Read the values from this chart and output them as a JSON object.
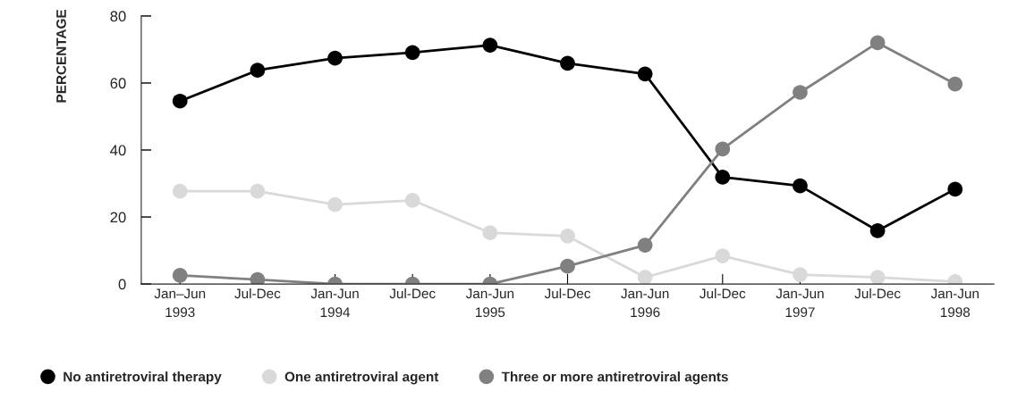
{
  "chart_data": {
    "type": "line",
    "ylabel": "PERCENTAGE",
    "categories": [
      "Jan–Jun\n1993",
      "Jul-Dec",
      "Jan-Jun\n1994",
      "Jul-Dec",
      "Jan-Jun\n1995",
      "Jul-Dec",
      "Jan-Jun\n1996",
      "Jul-Dec",
      "Jan-Jun\n1997",
      "Jul-Dec",
      "Jan-Jun\n1998"
    ],
    "series": [
      {
        "name": "No antiretroviral therapy",
        "color": "#000000",
        "values": [
          54.6,
          63.8,
          67.4,
          69.1,
          71.3,
          65.9,
          62.7,
          31.9,
          29.3,
          15.9,
          28.3
        ]
      },
      {
        "name": "One antiretroviral agent",
        "color": "#d9d9d9",
        "values": [
          27.7,
          27.7,
          23.7,
          25.0,
          15.3,
          14.3,
          2.0,
          8.4,
          2.8,
          2.0,
          0.7
        ]
      },
      {
        "name": "Three or more antiretroviral agents",
        "color": "#808080",
        "values": [
          2.6,
          1.3,
          0,
          0,
          0,
          5.3,
          11.6,
          40.3,
          57.2,
          72.0,
          59.7
        ]
      }
    ],
    "ylim": [
      0,
      80
    ],
    "yticks": [
      0,
      20,
      40,
      60,
      80
    ],
    "grid": false,
    "legend": "bottom left",
    "marker": "circle",
    "line_style": "solid"
  }
}
